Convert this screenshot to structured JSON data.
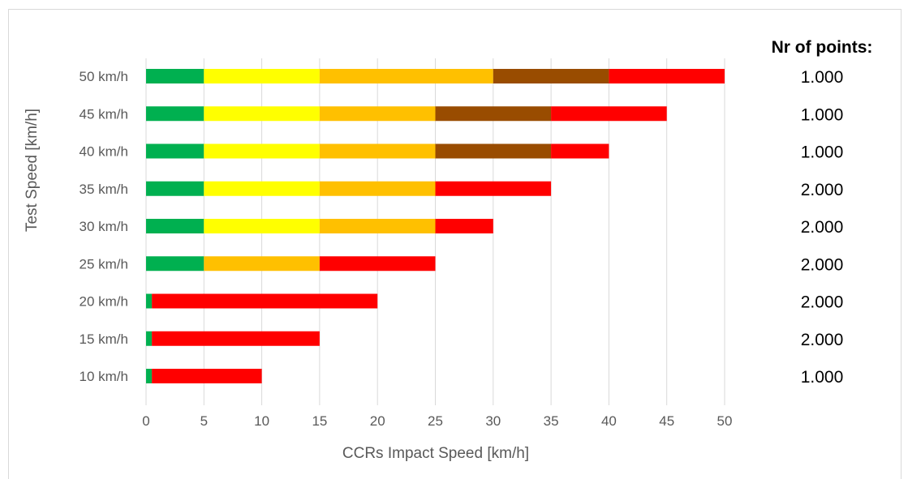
{
  "chart_data": {
    "type": "bar",
    "orientation": "horizontal",
    "stacked": true,
    "title": "",
    "xlabel": "CCRs Impact Speed [km/h]",
    "ylabel": "Test Speed [km/h]",
    "xlim": [
      0,
      50
    ],
    "x_ticks": [
      "0",
      "5",
      "10",
      "15",
      "20",
      "25",
      "30",
      "35",
      "40",
      "45",
      "50"
    ],
    "grid": "vertical",
    "legend": "none",
    "categories": [
      "50 km/h",
      "45 km/h",
      "40 km/h",
      "35 km/h",
      "30 km/h",
      "25 km/h",
      "20 km/h",
      "15 km/h",
      "10 km/h"
    ],
    "colors": {
      "green": "#00b050",
      "yellow": "#ffff00",
      "orange": "#ffc000",
      "brown": "#994c00",
      "red": "#ff0000"
    },
    "bars": [
      {
        "category": "50 km/h",
        "segments": [
          {
            "from": 0,
            "to": 5,
            "color": "green"
          },
          {
            "from": 5,
            "to": 15,
            "color": "yellow"
          },
          {
            "from": 15,
            "to": 30,
            "color": "orange"
          },
          {
            "from": 30,
            "to": 40,
            "color": "brown"
          },
          {
            "from": 40,
            "to": 50,
            "color": "red"
          }
        ]
      },
      {
        "category": "45 km/h",
        "segments": [
          {
            "from": 0,
            "to": 5,
            "color": "green"
          },
          {
            "from": 5,
            "to": 15,
            "color": "yellow"
          },
          {
            "from": 15,
            "to": 25,
            "color": "orange"
          },
          {
            "from": 25,
            "to": 35,
            "color": "brown"
          },
          {
            "from": 35,
            "to": 45,
            "color": "red"
          }
        ]
      },
      {
        "category": "40 km/h",
        "segments": [
          {
            "from": 0,
            "to": 5,
            "color": "green"
          },
          {
            "from": 5,
            "to": 15,
            "color": "yellow"
          },
          {
            "from": 15,
            "to": 25,
            "color": "orange"
          },
          {
            "from": 25,
            "to": 35,
            "color": "brown"
          },
          {
            "from": 35,
            "to": 40,
            "color": "red"
          }
        ]
      },
      {
        "category": "35 km/h",
        "segments": [
          {
            "from": 0,
            "to": 5,
            "color": "green"
          },
          {
            "from": 5,
            "to": 15,
            "color": "yellow"
          },
          {
            "from": 15,
            "to": 25,
            "color": "orange"
          },
          {
            "from": 25,
            "to": 35,
            "color": "red"
          }
        ]
      },
      {
        "category": "30 km/h",
        "segments": [
          {
            "from": 0,
            "to": 5,
            "color": "green"
          },
          {
            "from": 5,
            "to": 15,
            "color": "yellow"
          },
          {
            "from": 15,
            "to": 25,
            "color": "orange"
          },
          {
            "from": 25,
            "to": 30,
            "color": "red"
          }
        ]
      },
      {
        "category": "25 km/h",
        "segments": [
          {
            "from": 0,
            "to": 5,
            "color": "green"
          },
          {
            "from": 5,
            "to": 15,
            "color": "orange"
          },
          {
            "from": 15,
            "to": 25,
            "color": "red"
          }
        ]
      },
      {
        "category": "20 km/h",
        "segments": [
          {
            "from": 0,
            "to": 0.5,
            "color": "green"
          },
          {
            "from": 0.5,
            "to": 20,
            "color": "red"
          }
        ]
      },
      {
        "category": "15 km/h",
        "segments": [
          {
            "from": 0,
            "to": 0.5,
            "color": "green"
          },
          {
            "from": 0.5,
            "to": 15,
            "color": "red"
          }
        ]
      },
      {
        "category": "10 km/h",
        "segments": [
          {
            "from": 0,
            "to": 0.5,
            "color": "green"
          },
          {
            "from": 0.5,
            "to": 10,
            "color": "red"
          }
        ]
      }
    ]
  },
  "points_column": {
    "header": "Nr of points:",
    "values": [
      "1.000",
      "1.000",
      "1.000",
      "2.000",
      "2.000",
      "2.000",
      "2.000",
      "2.000",
      "1.000"
    ]
  }
}
